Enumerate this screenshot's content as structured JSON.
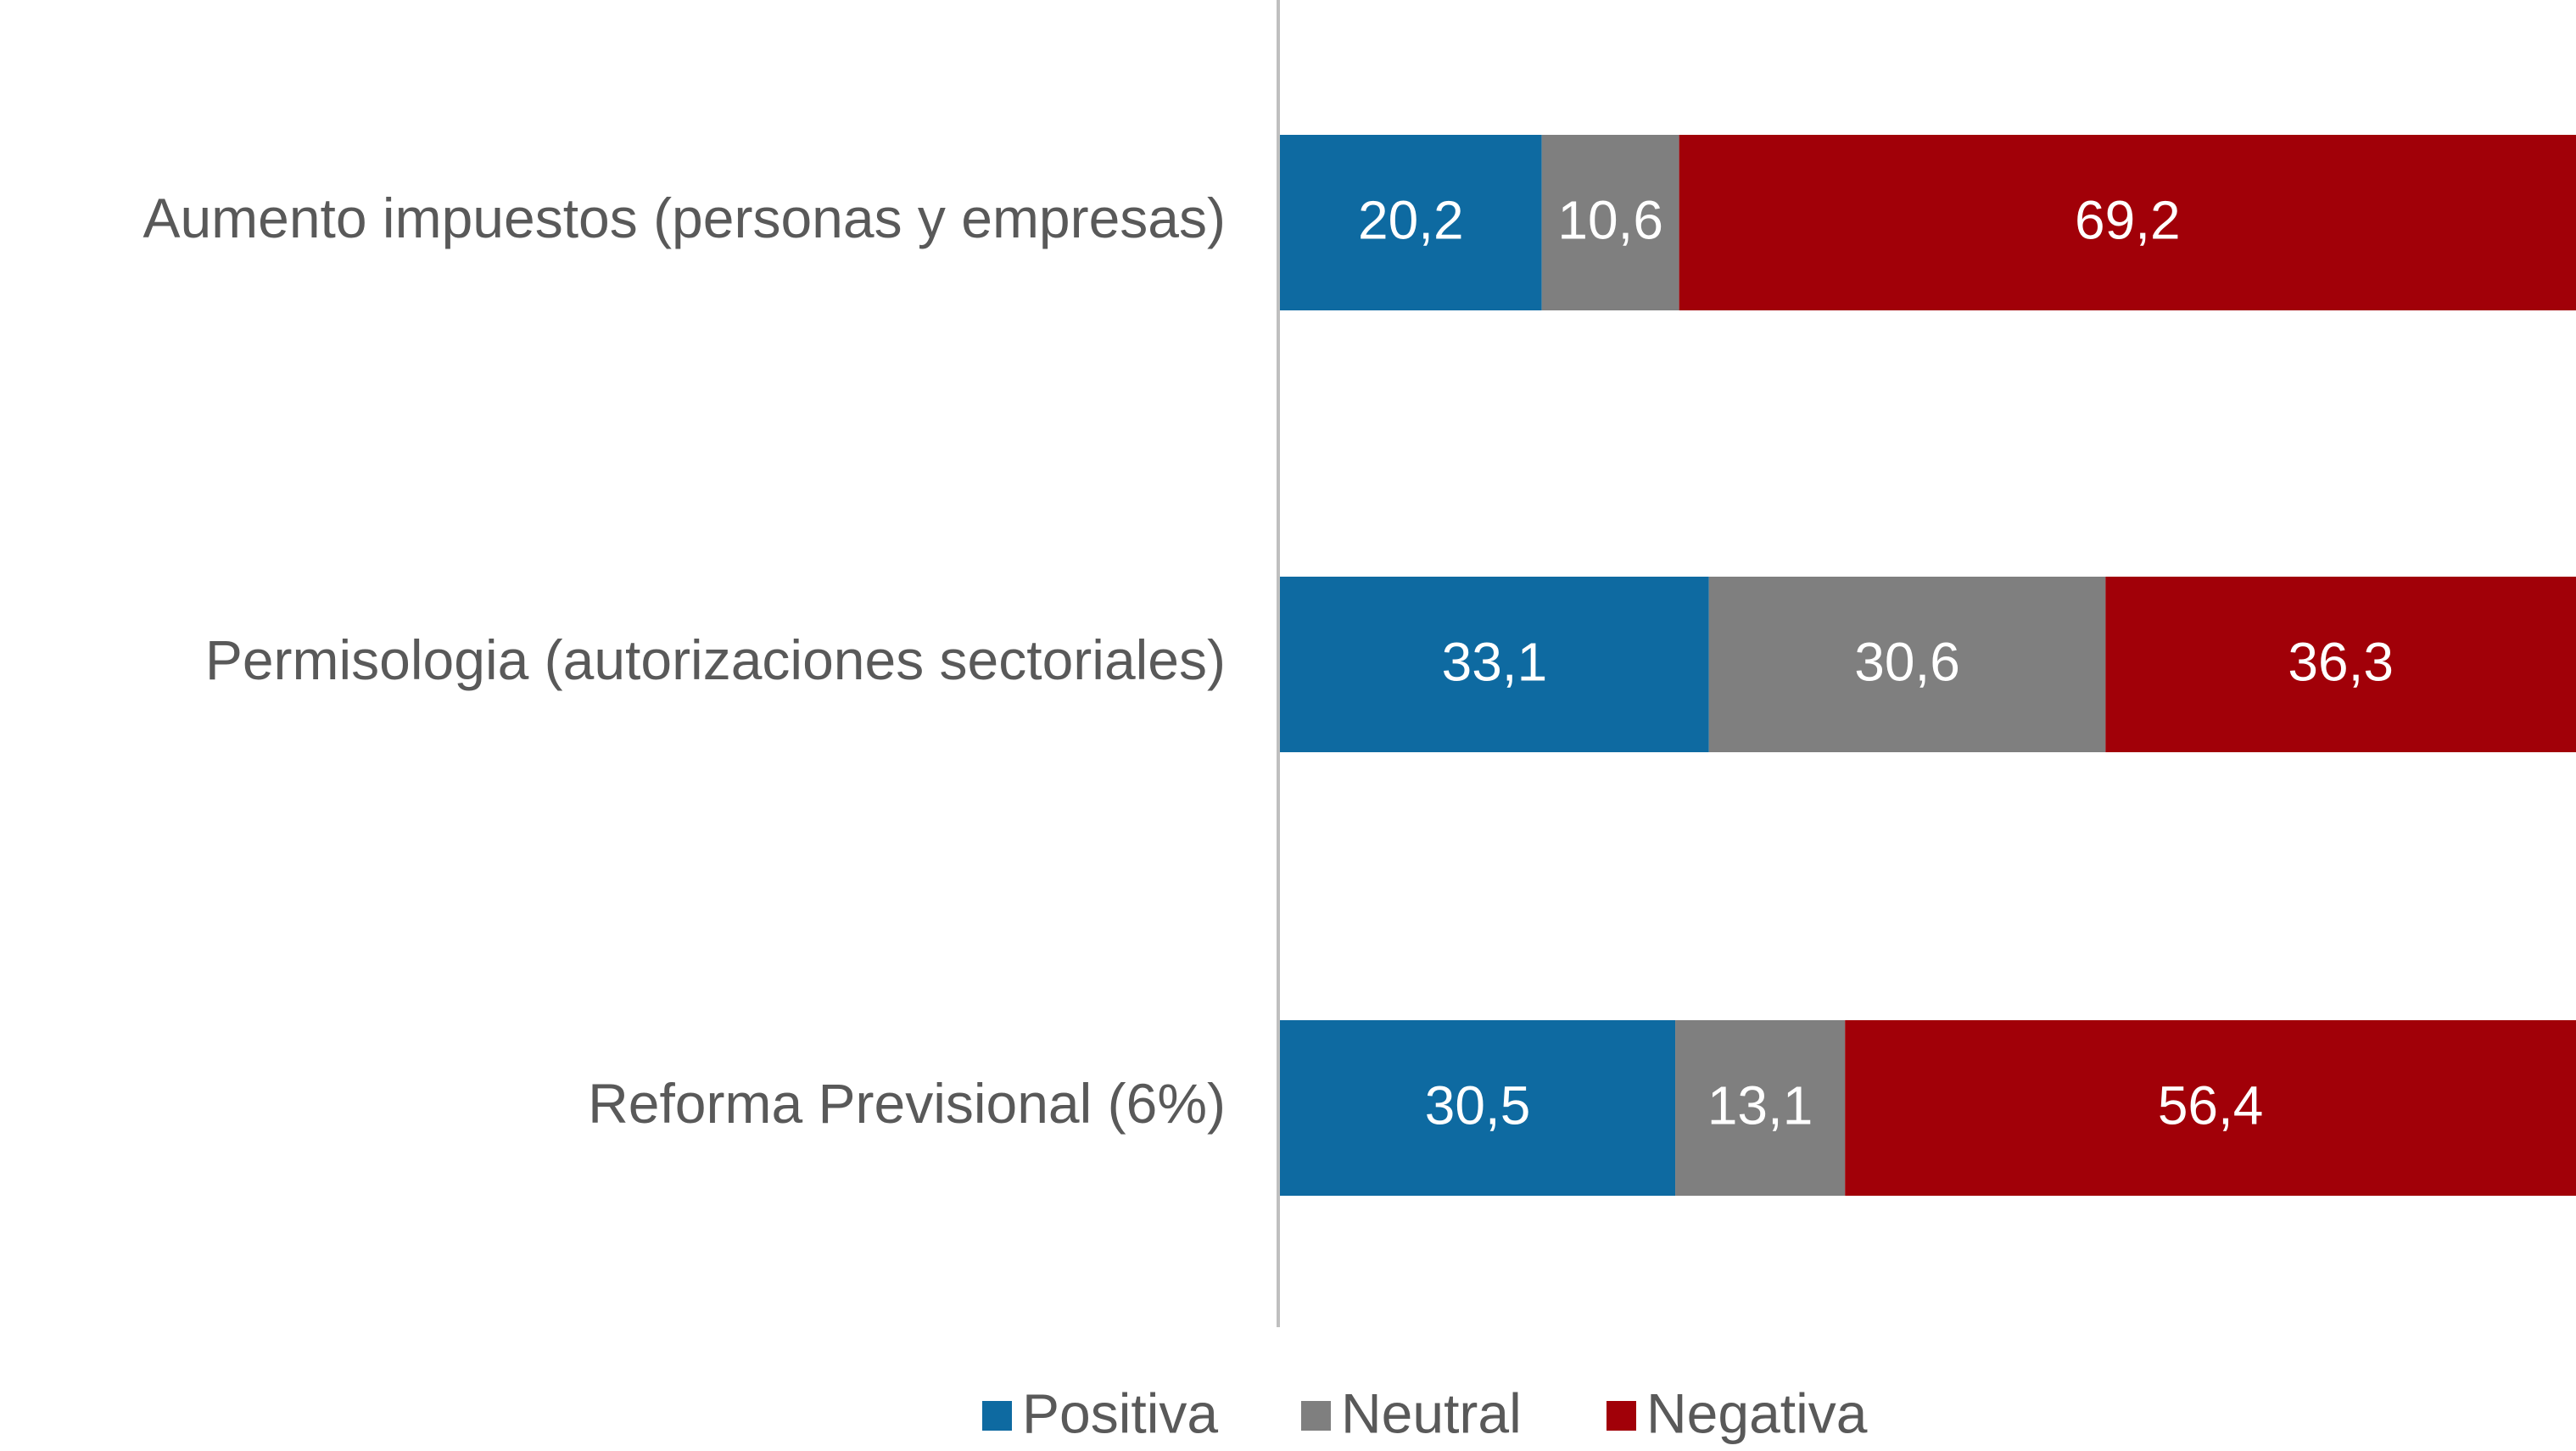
{
  "chart_data": {
    "type": "stacked-bar-horizontal",
    "categories": [
      "Aumento impuestos (personas y empresas)",
      "Permisologia (autorizaciones sectoriales)",
      "Reforma Previsional (6%)"
    ],
    "series": [
      {
        "name": "Positiva",
        "color": "#0e6aa1",
        "values": [
          20.2,
          33.1,
          30.5
        ],
        "value_labels": [
          "20,2",
          "33,1",
          "30,5"
        ]
      },
      {
        "name": "Neutral",
        "color": "#7f7f7f",
        "values": [
          10.6,
          30.6,
          13.1
        ],
        "value_labels": [
          "10,6",
          "30,6",
          "13,1"
        ]
      },
      {
        "name": "Negativa",
        "color": "#a10008",
        "values": [
          69.2,
          36.3,
          56.4
        ],
        "value_labels": [
          "69,2",
          "36,3",
          "56,4"
        ]
      }
    ],
    "xlim": [
      0,
      100
    ],
    "legend": "bottom"
  }
}
